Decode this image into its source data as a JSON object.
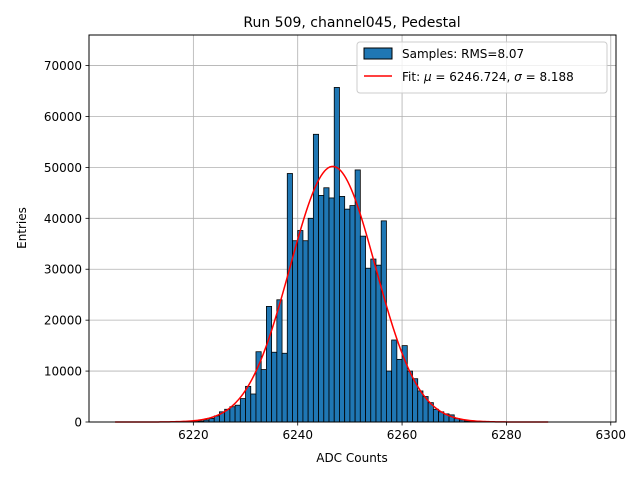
{
  "chart_data": {
    "type": "bar",
    "title": "Run 509, channel045, Pedestal",
    "xlabel": "ADC Counts",
    "ylabel": "Entries",
    "xlim": [
      6200,
      6301
    ],
    "ylim": [
      0,
      76000
    ],
    "xticks": [
      6220,
      6240,
      6260,
      6280,
      6300
    ],
    "yticks": [
      0,
      10000,
      20000,
      30000,
      40000,
      50000,
      60000,
      70000
    ],
    "grid": true,
    "legend_position": "top-right",
    "bar_color": "#1f77b4",
    "fit_color": "#ff0000",
    "histogram": {
      "name": "Samples: RMS=8.07",
      "bins_start": 6220,
      "bin_width": 1,
      "counts": [
        100,
        200,
        400,
        700,
        1200,
        2000,
        2500,
        3000,
        3300,
        4600,
        7000,
        5500,
        13800,
        10300,
        22700,
        13700,
        24000,
        13500,
        48800,
        35600,
        37600,
        35600,
        40000,
        56500,
        44500,
        46000,
        44000,
        65700,
        44300,
        41800,
        42500,
        49500,
        36500,
        30200,
        32000,
        30800,
        39500,
        10000,
        16100,
        12300,
        15000,
        10000,
        8500,
        6100,
        5000,
        3800,
        2500,
        2000,
        1600,
        1400,
        700,
        400,
        200,
        100
      ]
    },
    "fit": {
      "name_prefix": "Fit: ",
      "name_symbol_1": "μ",
      "name_middle": " = 6246.724, ",
      "name_symbol_2": "σ",
      "name_suffix": " = 8.188",
      "mu": 6246.724,
      "sigma": 8.188,
      "amplitude": 50200,
      "x_range": [
        6205,
        6288
      ]
    }
  }
}
